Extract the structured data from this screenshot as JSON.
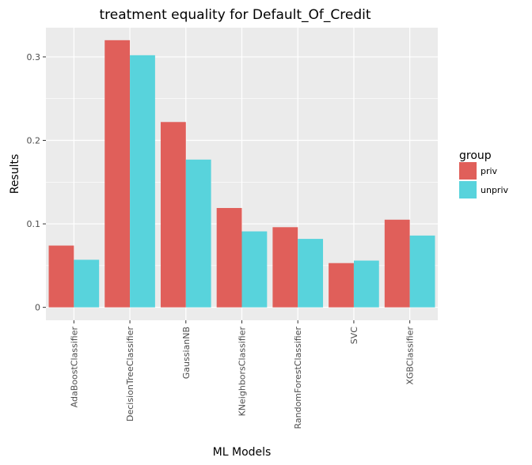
{
  "chart_data": {
    "type": "bar",
    "title": "treatment equality for Default_Of_Credit",
    "xlabel": "ML Models",
    "ylabel": "Results",
    "categories": [
      "AdaBoostClassifier",
      "DecisionTreeClassifier",
      "GaussianNB",
      "KNeighborsClassifier",
      "RandomForestClassifier",
      "SVC",
      "XGBClassifier"
    ],
    "series": [
      {
        "name": "priv",
        "color": "#e05f5a",
        "values": [
          0.074,
          0.32,
          0.222,
          0.119,
          0.096,
          0.053,
          0.105
        ]
      },
      {
        "name": "unpriv",
        "color": "#58d3dc",
        "values": [
          0.057,
          0.302,
          0.177,
          0.091,
          0.082,
          0.056,
          0.086
        ]
      }
    ],
    "ylim": [
      -0.0155,
      0.335
    ],
    "yticks": [
      0,
      0.1,
      0.2,
      0.3
    ],
    "ytick_labels": [
      "0",
      "0.1",
      "0.2",
      "0.3"
    ],
    "legend": {
      "title": "group",
      "position": "right"
    },
    "grid": true,
    "panel_background": "#ebebeb"
  }
}
